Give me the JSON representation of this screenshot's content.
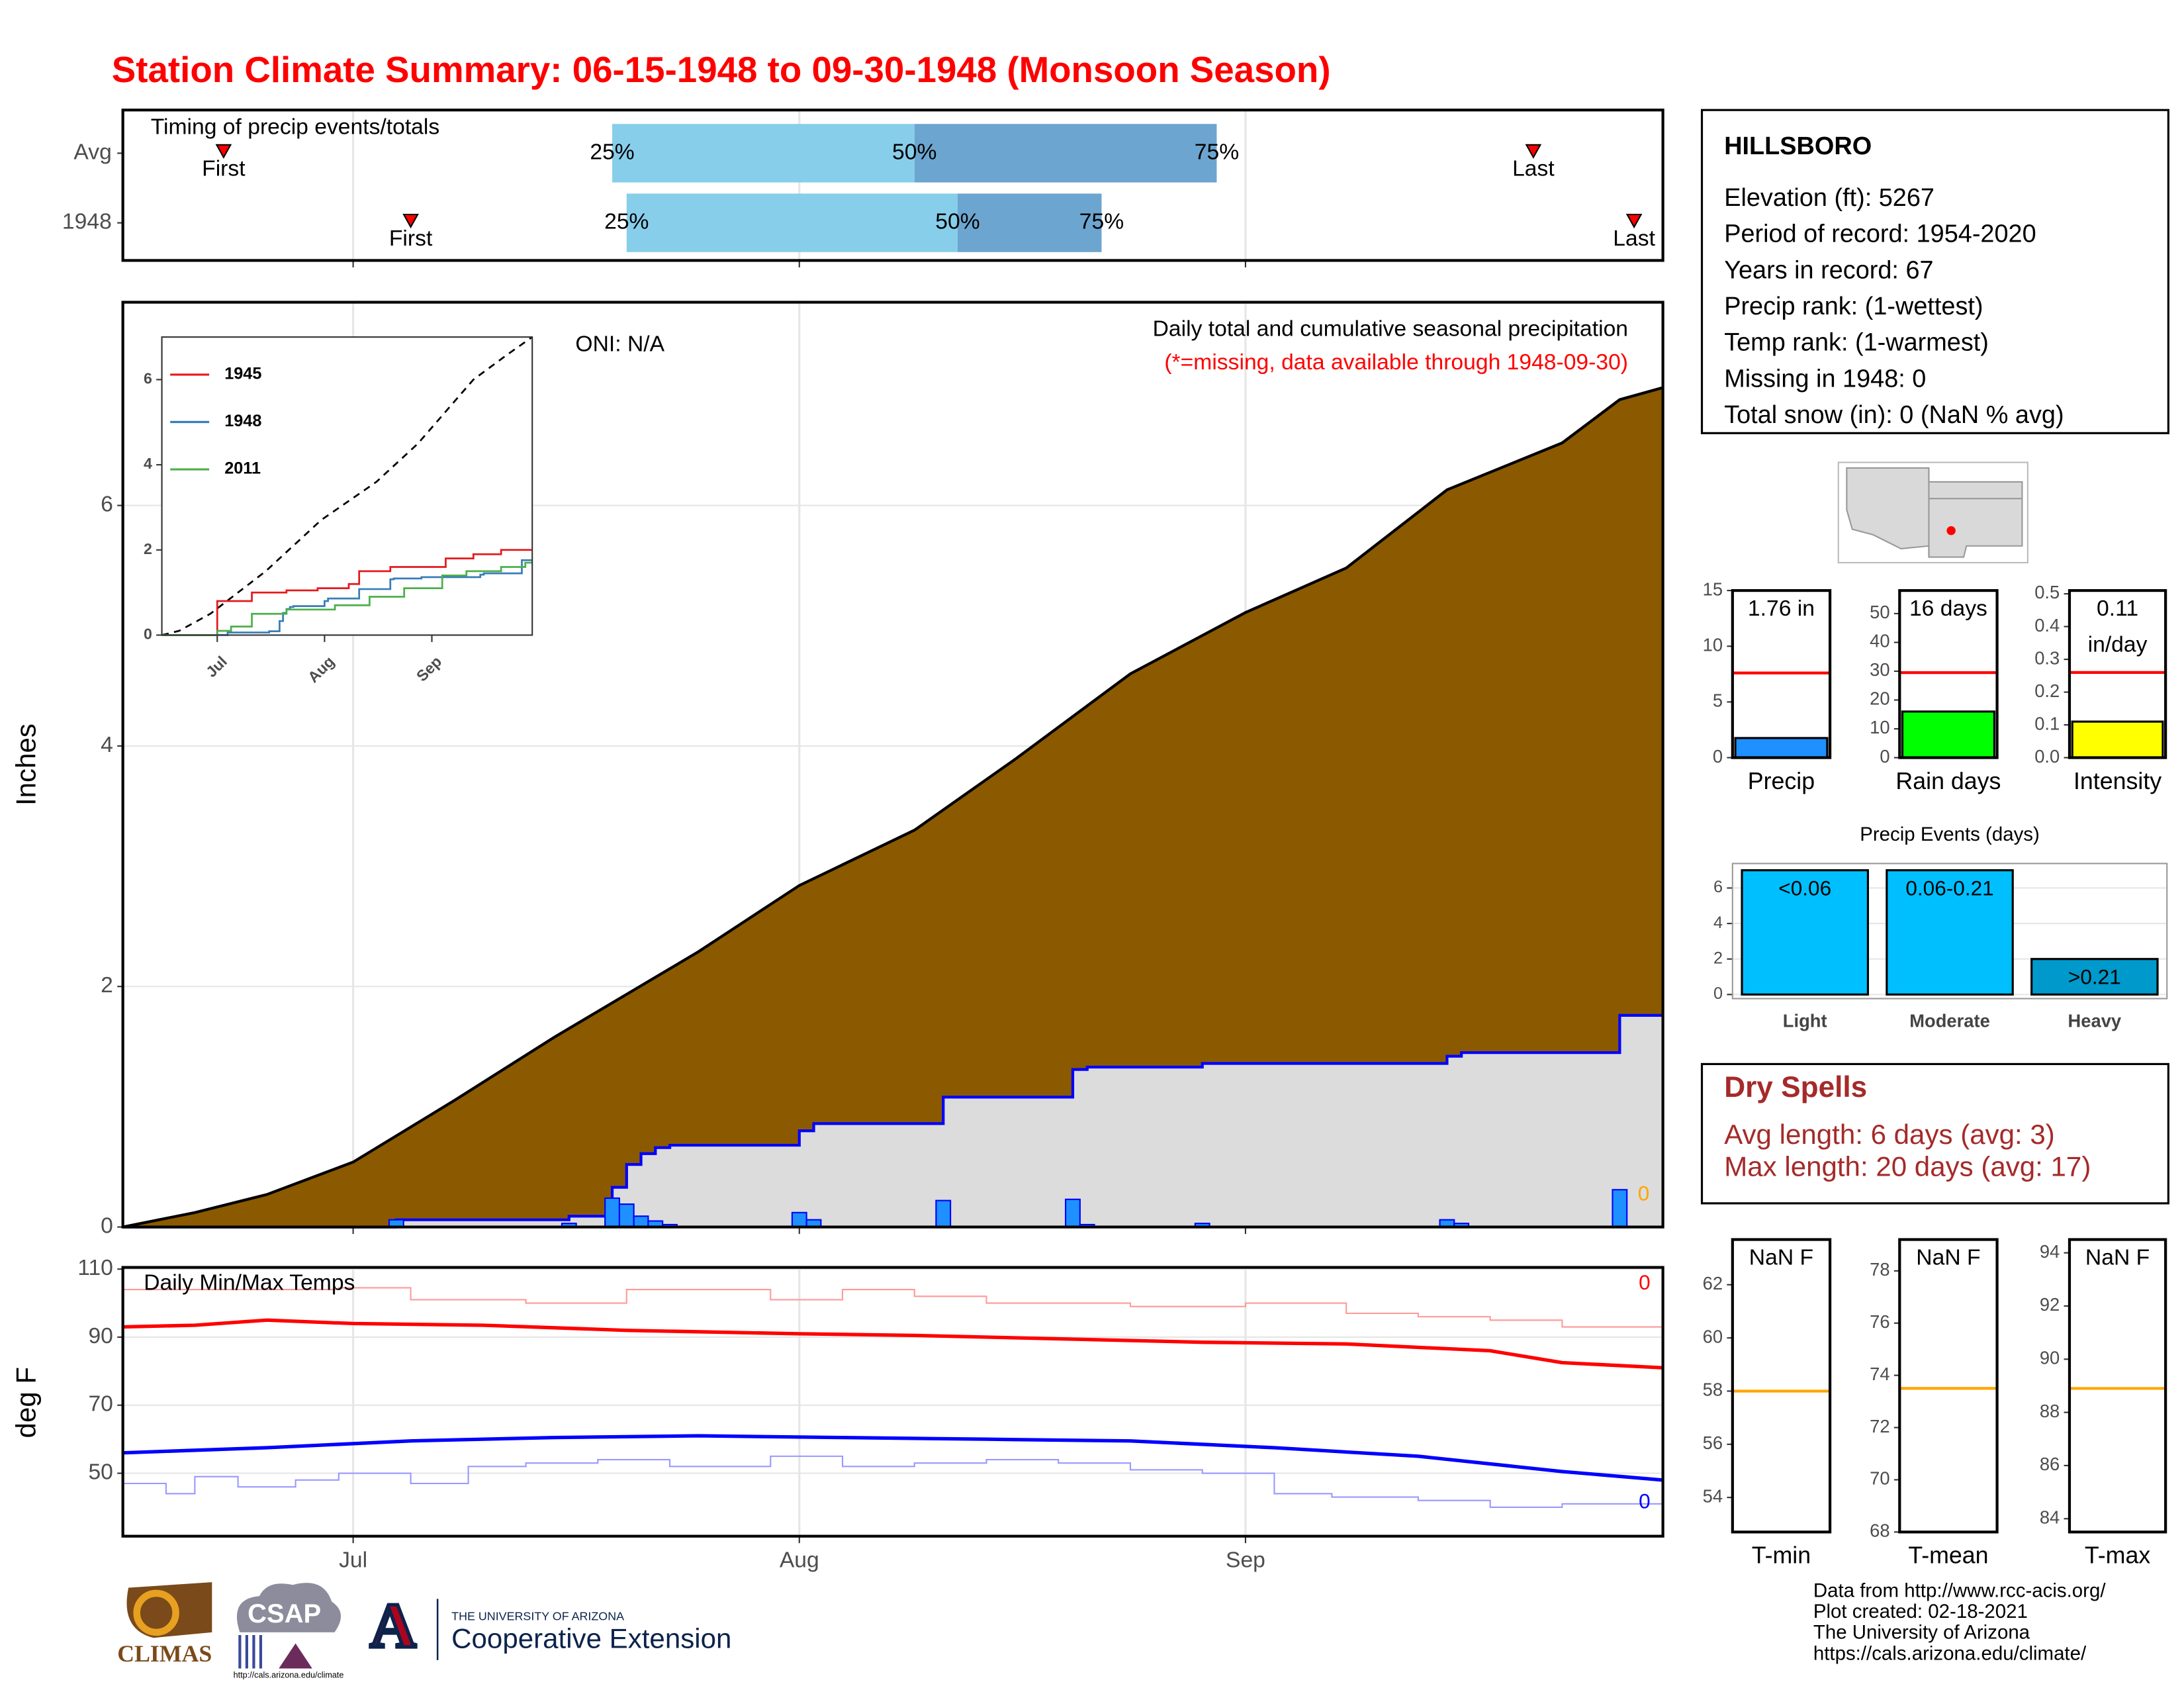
{
  "title": "Station Climate Summary: 06-15-1948 to 09-30-1948 (Monsoon Season)",
  "chart_data": [
    {
      "type": "timing",
      "title": "Timing of precip events/totals",
      "xlim": [
        0,
        107
      ],
      "xticks": [
        16,
        47,
        78
      ],
      "marker_labels": [
        "First",
        "25%",
        "50%",
        "75%",
        "Last"
      ],
      "rows": [
        {
          "name": "Avg",
          "values": [
            7,
            34,
            55,
            76,
            98
          ]
        },
        {
          "name": "1948",
          "values": [
            20,
            35,
            58,
            68,
            105
          ]
        }
      ],
      "colors": [
        "#87ceeb",
        "#6ca5cf"
      ],
      "marker_color": "#ff0000",
      "grid": true
    },
    {
      "type": "area",
      "title": "Daily total and cumulative seasonal precipitation",
      "subtitle": "(*=missing, data available through 1948-09-30)",
      "annotation": "ONI: N/A",
      "ylabel": "Inches",
      "missing_count": 0,
      "xlim": [
        0,
        107
      ],
      "xticks": [
        16,
        47,
        78
      ],
      "ylim": [
        0,
        7.69
      ],
      "yticks": [
        0,
        2,
        4,
        6
      ],
      "grid": true,
      "series": [
        {
          "x": [
            0,
            5,
            10,
            16,
            23,
            30,
            40,
            47,
            55,
            62,
            70,
            78,
            85,
            92,
            100,
            104,
            107
          ],
          "values": [
            0,
            0.12,
            0.27,
            0.54,
            1.05,
            1.58,
            2.29,
            2.84,
            3.3,
            3.89,
            4.6,
            5.11,
            5.48,
            6.13,
            6.52,
            6.88,
            6.98
          ],
          "color": "#8b5a00",
          "line_color": "#000000",
          "step": false
        },
        {
          "x": [
            0,
            19,
            31,
            34,
            35,
            36,
            37,
            38,
            47,
            48,
            57,
            66,
            67,
            75,
            92,
            93,
            104,
            107
          ],
          "values": [
            0,
            0.06,
            0.09,
            0.33,
            0.52,
            0.61,
            0.66,
            0.68,
            0.8,
            0.86,
            1.08,
            1.31,
            1.33,
            1.36,
            1.42,
            1.45,
            1.76,
            1.76
          ],
          "color": "#dcdcdc",
          "line_color": "#0000ff",
          "step": true
        }
      ],
      "daily": {
        "x": [
          19,
          31,
          34,
          35,
          36,
          37,
          38,
          47,
          48,
          57,
          66,
          67,
          75,
          92,
          93,
          104
        ],
        "values": [
          0.06,
          0.03,
          0.24,
          0.19,
          0.09,
          0.05,
          0.02,
          0.12,
          0.06,
          0.22,
          0.23,
          0.02,
          0.03,
          0.06,
          0.03,
          0.31
        ],
        "color": "#1e90ff"
      }
    },
    {
      "type": "line",
      "xlim": [
        0,
        107
      ],
      "ylim": [
        0,
        7
      ],
      "yticks": [
        0,
        2,
        4,
        6
      ],
      "legend": "top-left",
      "xtick_rotation": 45,
      "xticks": [
        {
          "value": 16,
          "label": "Jul"
        },
        {
          "value": 47,
          "label": "Aug"
        },
        {
          "value": 78,
          "label": "Sep"
        }
      ],
      "series": [
        {
          "x": [
            0,
            5,
            14,
            30,
            46,
            62,
            74,
            90,
            100,
            107
          ],
          "values": [
            0,
            0.1,
            0.5,
            1.5,
            2.7,
            3.6,
            4.5,
            6.0,
            6.6,
            7.0
          ],
          "color": "#000000",
          "dash": true,
          "step": false
        },
        {
          "name": "1945",
          "x": [
            0,
            16,
            26,
            36,
            45,
            54,
            57,
            66,
            82,
            90,
            98,
            107
          ],
          "values": [
            0,
            0.8,
            1.0,
            1.05,
            1.1,
            1.2,
            1.5,
            1.6,
            1.8,
            1.9,
            2.0,
            2.0
          ],
          "color": "#e41a1c",
          "step": true
        },
        {
          "name": "1948",
          "x": [
            0,
            19,
            31,
            34,
            35,
            36,
            37,
            38,
            47,
            48,
            57,
            66,
            67,
            75,
            92,
            93,
            104,
            107
          ],
          "values": [
            0,
            0.06,
            0.09,
            0.33,
            0.52,
            0.61,
            0.66,
            0.68,
            0.8,
            0.86,
            1.08,
            1.31,
            1.33,
            1.36,
            1.42,
            1.45,
            1.76,
            1.76
          ],
          "color": "#377eb8",
          "step": true
        },
        {
          "name": "2011",
          "x": [
            0,
            16,
            20,
            26,
            36,
            50,
            60,
            70,
            81,
            88,
            98,
            105,
            107
          ],
          "values": [
            0,
            0.1,
            0.2,
            0.5,
            0.6,
            0.7,
            0.9,
            1.1,
            1.4,
            1.5,
            1.6,
            1.7,
            1.7
          ],
          "color": "#4daf4a",
          "step": true
        }
      ]
    },
    {
      "type": "line",
      "annotation": "Daily Min/Max Temps",
      "ylabel": "deg F",
      "missing_max": 0,
      "missing_min": 0,
      "xlim": [
        0,
        107
      ],
      "ylim": [
        31.5,
        110.5
      ],
      "yticks": [
        50,
        70,
        90,
        110
      ],
      "grid": true,
      "xticks": [
        {
          "value": 16,
          "label": "Jul"
        },
        {
          "value": 47,
          "label": "Aug"
        },
        {
          "value": 78,
          "label": "Sep"
        }
      ],
      "series": [
        {
          "x": [
            0,
            15,
            20,
            28,
            35,
            45,
            50,
            55,
            60,
            70,
            78,
            85,
            90,
            95,
            100,
            107
          ],
          "values": [
            104,
            104.5,
            101,
            100,
            104,
            101,
            104,
            102,
            100,
            99,
            100,
            97,
            96,
            95,
            93,
            93
          ],
          "color": "#ff9999",
          "width": 1,
          "step": true
        },
        {
          "x": [
            0,
            3,
            5,
            8,
            12,
            15,
            20,
            24,
            28,
            33,
            38,
            45,
            50,
            55,
            60,
            65,
            70,
            75,
            80,
            84,
            90,
            95,
            100,
            105,
            107
          ],
          "values": [
            47,
            44,
            49,
            46,
            48,
            50,
            47,
            52,
            53,
            54,
            52,
            55,
            52,
            53,
            54,
            53,
            51,
            50,
            44,
            43,
            42,
            40,
            41,
            41,
            40
          ],
          "color": "#9999ff",
          "width": 1,
          "step": true
        },
        {
          "x": [
            0,
            5,
            10,
            16,
            25,
            35,
            47,
            55,
            65,
            75,
            85,
            95,
            100,
            107
          ],
          "values": [
            93,
            93.5,
            95,
            94,
            93.5,
            92,
            91,
            90.5,
            89.5,
            88.5,
            88,
            86,
            82.5,
            81
          ],
          "color": "#ff0000",
          "width": 2.5,
          "step": false
        },
        {
          "x": [
            0,
            10,
            20,
            30,
            40,
            50,
            60,
            70,
            80,
            90,
            100,
            107
          ],
          "values": [
            56,
            57.5,
            59.5,
            60.5,
            61,
            60.5,
            60,
            59.5,
            57.5,
            55,
            50.5,
            48
          ],
          "color": "#0000ff",
          "width": 2.5,
          "step": false
        }
      ]
    },
    {
      "type": "bar",
      "categories": [
        "Precip"
      ],
      "values": [
        1.76
      ],
      "value_labels": [
        "1.76 in"
      ],
      "color": "#1e90ff",
      "average": 7.6,
      "average_color": "#ff0000",
      "ylim": [
        0,
        15
      ],
      "yticks": [
        0,
        5,
        10,
        15
      ]
    },
    {
      "type": "bar",
      "categories": [
        "Rain days"
      ],
      "values": [
        16
      ],
      "value_labels": [
        "16 days"
      ],
      "color": "#00ff00",
      "average": 29.5,
      "average_color": "#ff0000",
      "ylim": [
        0,
        58
      ],
      "yticks": [
        0,
        10,
        20,
        30,
        40,
        50
      ]
    },
    {
      "type": "bar",
      "categories": [
        "Intensity"
      ],
      "values": [
        0.11
      ],
      "value_labels": [
        "0.11 in/day"
      ],
      "color": "#ffff00",
      "average": 0.26,
      "average_color": "#ff0000",
      "ylim": [
        0,
        0.51
      ],
      "yticks": [
        {
          "value": 0,
          "label": "0.0"
        },
        0.1,
        0.2,
        0.3,
        0.4,
        0.5
      ]
    },
    {
      "type": "bar",
      "title": "Precip Events (days)",
      "categories": [
        "Light",
        "Moderate",
        "Heavy"
      ],
      "values": [
        7,
        7,
        2
      ],
      "bar_labels": [
        "<0.06",
        "0.06-0.21",
        ">0.21"
      ],
      "colors": [
        "#00bfff",
        "#00bfff",
        "#0099cc"
      ],
      "ylim": [
        -0.23,
        7.38
      ],
      "yticks": [
        0,
        2,
        4,
        6
      ],
      "grid": true
    },
    {
      "type": "bar",
      "categories": [
        "T-min"
      ],
      "values": [
        null
      ],
      "value_labels": [
        "NaN F"
      ],
      "color": "#888888",
      "average": 58,
      "average_color": "#ffa500",
      "ylim": [
        52.7,
        63.7
      ],
      "yticks": [
        54,
        56,
        58,
        60,
        62
      ]
    },
    {
      "type": "bar",
      "categories": [
        "T-mean"
      ],
      "values": [
        null
      ],
      "value_labels": [
        "NaN F"
      ],
      "color": "#888888",
      "average": 73.5,
      "average_color": "#ffa500",
      "ylim": [
        68,
        79.2
      ],
      "yticks": [
        68,
        70,
        72,
        74,
        76,
        78
      ]
    },
    {
      "type": "bar",
      "categories": [
        "T-max"
      ],
      "values": [
        null
      ],
      "value_labels": [
        "NaN F"
      ],
      "color": "#888888",
      "average": 88.9,
      "average_color": "#ffa500",
      "ylim": [
        83.5,
        94.5
      ],
      "yticks": [
        84,
        86,
        88,
        90,
        92,
        94
      ]
    }
  ],
  "station": {
    "name": "HILLSBORO",
    "lines": [
      "Elevation (ft): 5267",
      "Period of record: 1954-2020",
      "Years in record: 67",
      "Precip rank:  (1-wettest)",
      "Temp rank:  (1-warmest)",
      "Missing in 1948: 0",
      "Total snow (in): 0 (NaN % avg)"
    ]
  },
  "dry_spells": {
    "title": "Dry Spells",
    "lines": [
      "Avg length: 6 days (avg: 3)",
      "Max length: 20 days (avg: 17)"
    ]
  },
  "credits": [
    "Data from http://www.rcc-acis.org/",
    "Plot created: 02-18-2021",
    "The University of Arizona",
    "https://cals.arizona.edu/climate/"
  ],
  "logos": {
    "climas": "CLIMAS",
    "csap": "CSAP",
    "csap_url": "http://cals.arizona.edu/climate",
    "university": "THE UNIVERSITY OF ARIZONA",
    "extension": "Cooperative Extension"
  }
}
